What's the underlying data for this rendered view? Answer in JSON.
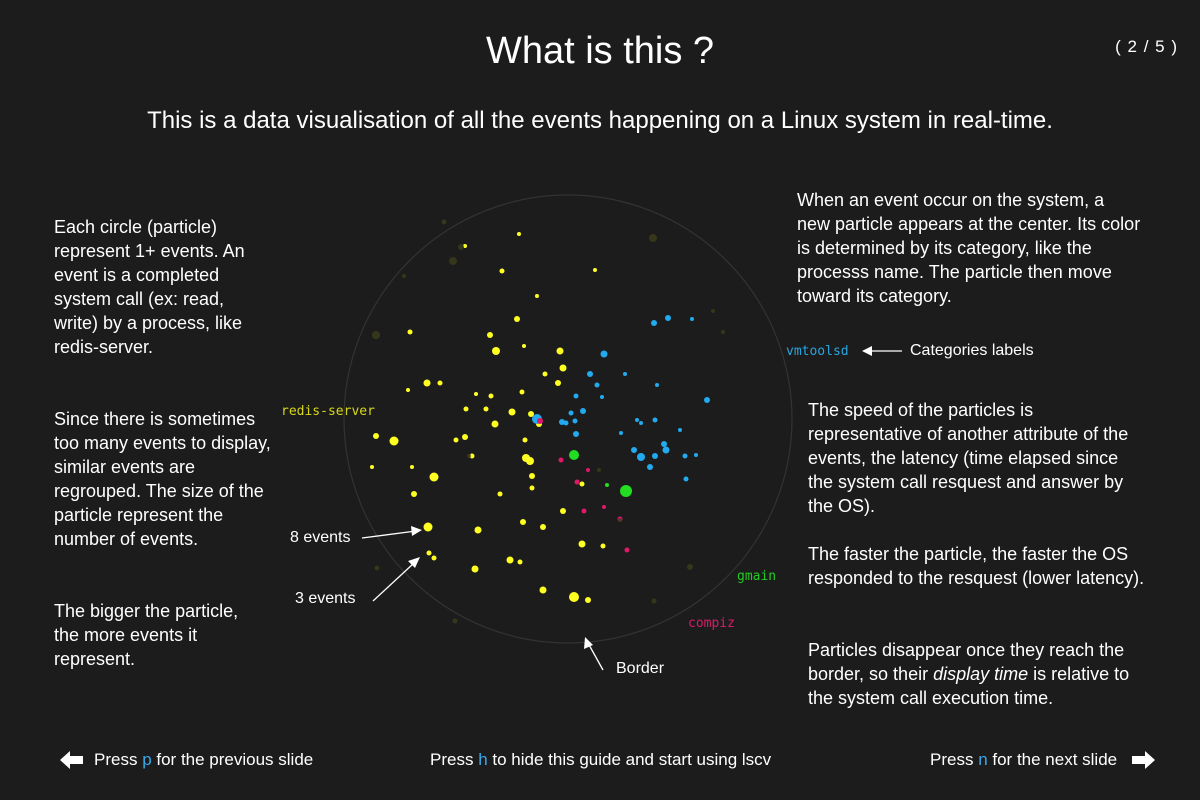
{
  "header": {
    "title": "What is this ?",
    "slide_counter": "( 2 / 5 )",
    "subtitle": "This is a data visualisation of all the events happening on a Linux system in real-time."
  },
  "left": {
    "p1": "Each circle (particle) represent 1+ events. An event is a completed system call (ex: read, write) by a process, like redis-server.",
    "p2": "Since there is sometimes too many events to display, similar events are regrouped. The size of the particle represent the number of events.",
    "p3": "The bigger the particle, the more events it represent."
  },
  "right": {
    "p1": "When an event occur on the system, a new particle appears at the center. Its color is determined by its category, like the processs name. The particle then move toward its category.",
    "categories_callout": "Categories labels",
    "p2": "The speed of the particles is representative of another attribute of the events, the latency (time elapsed since the system call resquest and answer by the OS).",
    "p3": "The faster the particle, the faster the OS responded to the resquest (lower latency).",
    "p4_before": "Particles disappear once they reach the border, so their ",
    "p4_em": "display time",
    "p4_after": " is relative to the system call execution time."
  },
  "annotations": {
    "eight_events": "8 events",
    "three_events": "3 events",
    "border": "Border"
  },
  "categories": {
    "redis": {
      "label": "redis-server",
      "color": "#d8d818"
    },
    "vmtoolsd": {
      "label": "vmtoolsd",
      "color": "#29a6e0"
    },
    "gmain": {
      "label": "gmain",
      "color": "#22cc22"
    },
    "compiz": {
      "label": "compiz",
      "color": "#d81c6a"
    }
  },
  "footer": {
    "prev": {
      "before": "Press ",
      "key": "p",
      "after": " for the previous slide"
    },
    "hide": {
      "before": "Press ",
      "key": "h",
      "after": " to hide this guide and start using lscv"
    },
    "next": {
      "before": "Press ",
      "key": "n",
      "after": " for the next slide"
    }
  },
  "colors": {
    "background": "#1c1c1c",
    "key_accent": "#39a9ea",
    "yellow": "#ffff22",
    "blue": "#22aaee",
    "green": "#22dd22",
    "pink": "#e0186a"
  }
}
